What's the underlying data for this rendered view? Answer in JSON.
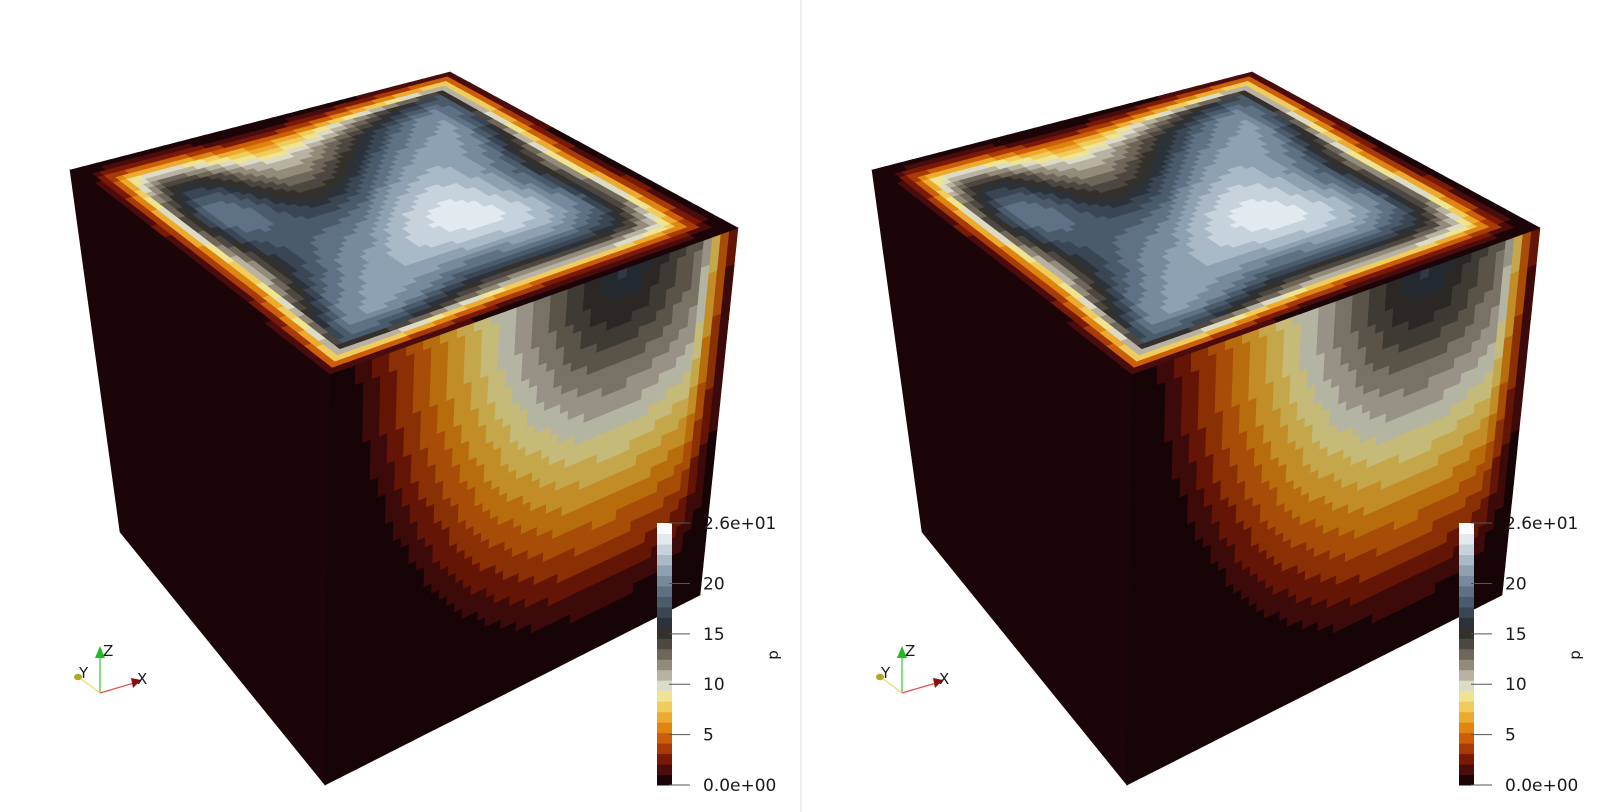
{
  "views": [
    {
      "id": "left",
      "colorbar": {
        "title": "p",
        "ticks": [
          {
            "label": "2.6e+01",
            "value": 26
          },
          {
            "label": "20",
            "value": 20
          },
          {
            "label": "15",
            "value": 15
          },
          {
            "label": "10",
            "value": 10
          },
          {
            "label": "5",
            "value": 5
          },
          {
            "label": "0.0e+00",
            "value": 0
          }
        ]
      },
      "axes": {
        "x": "X",
        "y": "Y",
        "z": "Z"
      }
    },
    {
      "id": "right",
      "colorbar": {
        "title": "p",
        "ticks": [
          {
            "label": "2.6e+01",
            "value": 26
          },
          {
            "label": "20",
            "value": 20
          },
          {
            "label": "15",
            "value": 15
          },
          {
            "label": "10",
            "value": 10
          },
          {
            "label": "5",
            "value": 5
          },
          {
            "label": "0.0e+00",
            "value": 0
          }
        ]
      },
      "axes": {
        "x": "X",
        "y": "Y",
        "z": "Z"
      }
    }
  ],
  "colormap": [
    "#1c0508",
    "#4a0c0c",
    "#7a1a06",
    "#a83a06",
    "#cc5e0a",
    "#e0850f",
    "#ecab2f",
    "#f0cc5c",
    "#f0e392",
    "#dcdcc6",
    "#b8b2a2",
    "#928b7a",
    "#6e6658",
    "#4c4740",
    "#34302c",
    "#2c323a",
    "#3a4654",
    "#4a5b6c",
    "#5f7184",
    "#778a9c",
    "#8ea1b2",
    "#a9b9c6",
    "#c6d3dc",
    "#e2eaef",
    "#fbfdfe"
  ],
  "colorbar_range": [
    0,
    26
  ]
}
